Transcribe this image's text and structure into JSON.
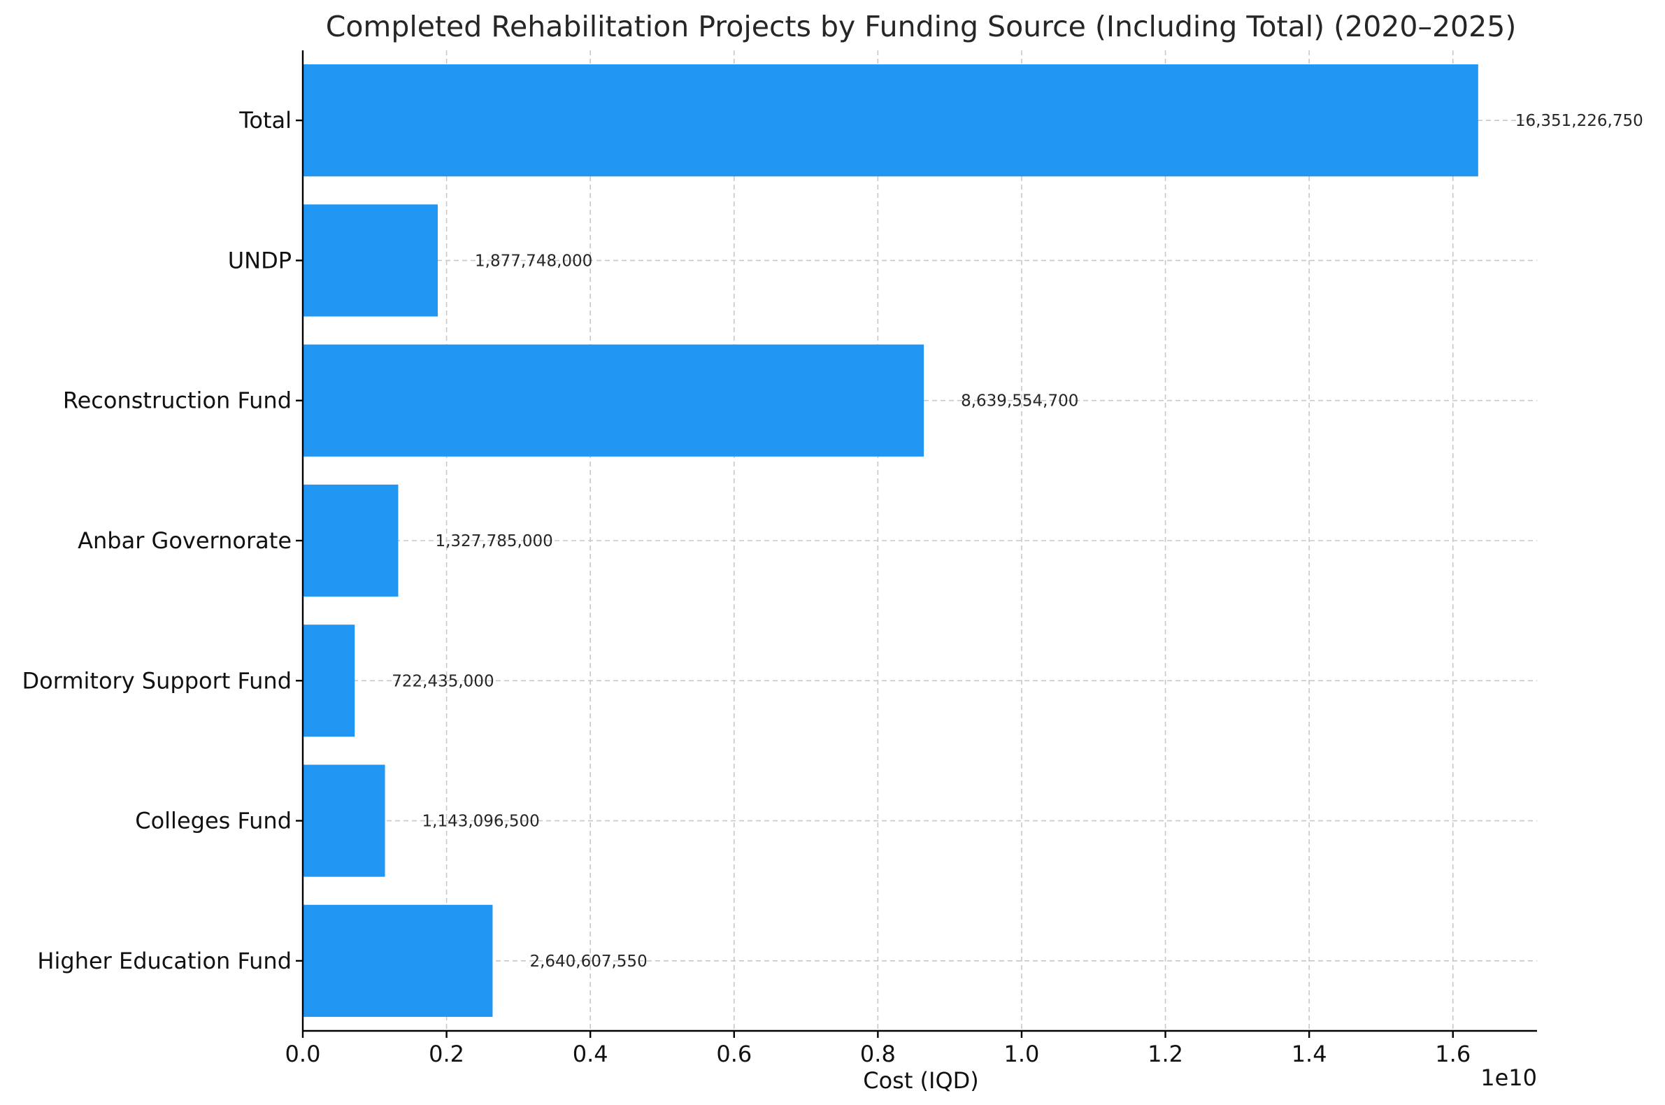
{
  "chart_data": {
    "type": "bar",
    "orientation": "horizontal",
    "title": "Completed Rehabilitation Projects by Funding Source (Including Total) (2020–2025)",
    "xlabel": "Cost (IQD)",
    "ylabel": "",
    "x_scale_label": "1e10",
    "xlim": [
      0,
      17170000000.0
    ],
    "x_ticks": [
      0,
      2000000000,
      4000000000,
      6000000000,
      8000000000,
      10000000000,
      12000000000,
      14000000000,
      16000000000
    ],
    "x_tick_labels": [
      "0.0",
      "0.2",
      "0.4",
      "0.6",
      "0.8",
      "1.0",
      "1.2",
      "1.4",
      "1.6"
    ],
    "categories": [
      "Total",
      "UNDP",
      "Reconstruction Fund",
      "Anbar Governorate",
      "Dormitory Support Fund",
      "Colleges Fund",
      "Higher Education Fund"
    ],
    "values": [
      16351226750,
      1877748000,
      8639554700,
      1327785000,
      722435000,
      1143096500,
      2640607550
    ],
    "data_labels": [
      "16,351,226,750",
      "1,877,748,000",
      "8,639,554,700",
      "1,327,785,000",
      "722,435,000",
      "1,143,096,500",
      "2,640,607,550"
    ],
    "bar_color": "#2196f3",
    "grid": true
  }
}
